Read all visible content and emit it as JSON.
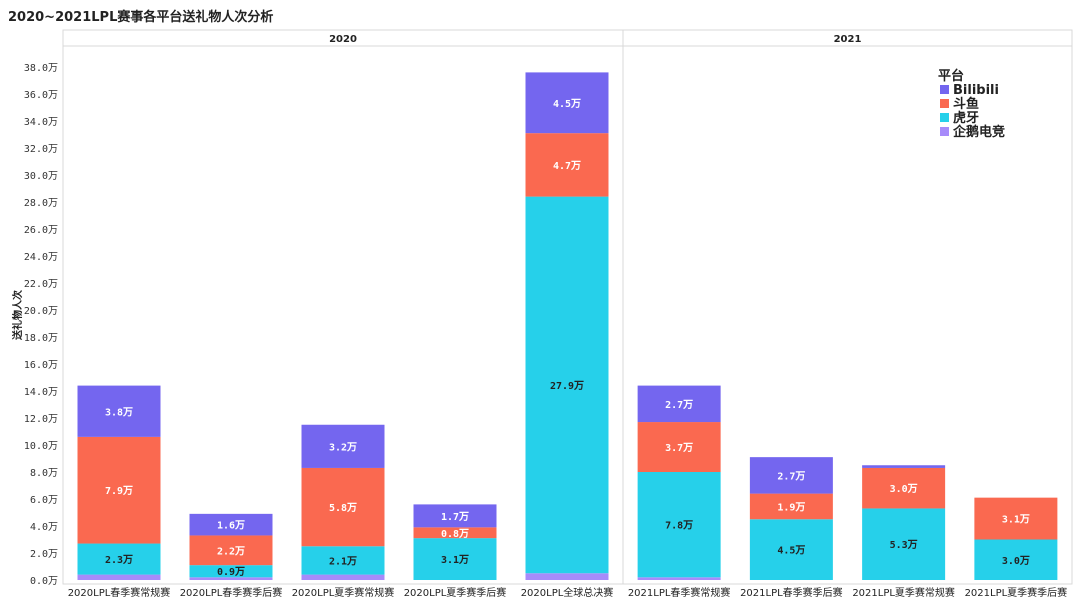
{
  "chart_data": {
    "type": "bar",
    "stacked": true,
    "title": "2020~2021LPL赛事各平台送礼物人次分析",
    "ylabel": "送礼物人次",
    "ylim": [
      0,
      39
    ],
    "yticks": [
      "0.0万",
      "2.0万",
      "4.0万",
      "6.0万",
      "8.0万",
      "10.0万",
      "12.0万",
      "14.0万",
      "16.0万",
      "18.0万",
      "20.0万",
      "22.0万",
      "24.0万",
      "26.0万",
      "28.0万",
      "30.0万",
      "32.0万",
      "34.0万",
      "36.0万",
      "38.0万"
    ],
    "legend_title": "平台",
    "legend_position": "top-right",
    "colors": {
      "企鹅电竞": "#a78bfa",
      "虎牙": "#26d0ea",
      "斗鱼": "#fa6950",
      "Bilibili": "#7466ef"
    },
    "legend_order": [
      "Bilibili",
      "斗鱼",
      "虎牙",
      "企鹅电竞"
    ],
    "panels": [
      {
        "title": "2020",
        "categories": [
          "2020LPL春季赛常规赛",
          "2020LPL春季赛季后赛",
          "2020LPL夏季赛常规赛",
          "2020LPL夏季赛季后赛",
          "2020LPL全球总决赛"
        ],
        "series": [
          {
            "name": "企鹅电竞",
            "values": [
              0.4,
              0.2,
              0.4,
              0.0,
              0.5
            ],
            "labels": [
              "",
              "",
              "",
              "",
              ""
            ]
          },
          {
            "name": "虎牙",
            "values": [
              2.3,
              0.9,
              2.1,
              3.1,
              27.9
            ],
            "labels": [
              "2.3万",
              "0.9万",
              "2.1万",
              "3.1万",
              "27.9万"
            ]
          },
          {
            "name": "斗鱼",
            "values": [
              7.9,
              2.2,
              5.8,
              0.8,
              4.7
            ],
            "labels": [
              "7.9万",
              "2.2万",
              "5.8万",
              "0.8万",
              "4.7万"
            ]
          },
          {
            "name": "Bilibili",
            "values": [
              3.8,
              1.6,
              3.2,
              1.7,
              4.5
            ],
            "labels": [
              "3.8万",
              "1.6万",
              "3.2万",
              "1.7万",
              "4.5万"
            ]
          }
        ]
      },
      {
        "title": "2021",
        "categories": [
          "2021LPL春季赛常规赛",
          "2021LPL春季赛季后赛",
          "2021LPL夏季赛常规赛",
          "2021LPL夏季赛季后赛"
        ],
        "series": [
          {
            "name": "企鹅电竞",
            "values": [
              0.2,
              0.0,
              0.0,
              0.0
            ],
            "labels": [
              "",
              "",
              "",
              ""
            ]
          },
          {
            "name": "虎牙",
            "values": [
              7.8,
              4.5,
              5.3,
              3.0
            ],
            "labels": [
              "7.8万",
              "4.5万",
              "5.3万",
              "3.0万"
            ]
          },
          {
            "name": "斗鱼",
            "values": [
              3.7,
              1.9,
              3.0,
              3.1
            ],
            "labels": [
              "3.7万",
              "1.9万",
              "3.0万",
              "3.1万"
            ]
          },
          {
            "name": "Bilibili",
            "values": [
              2.7,
              2.7,
              0.2,
              0.0
            ],
            "labels": [
              "2.7万",
              "2.7万",
              "",
              ""
            ]
          }
        ]
      }
    ]
  }
}
